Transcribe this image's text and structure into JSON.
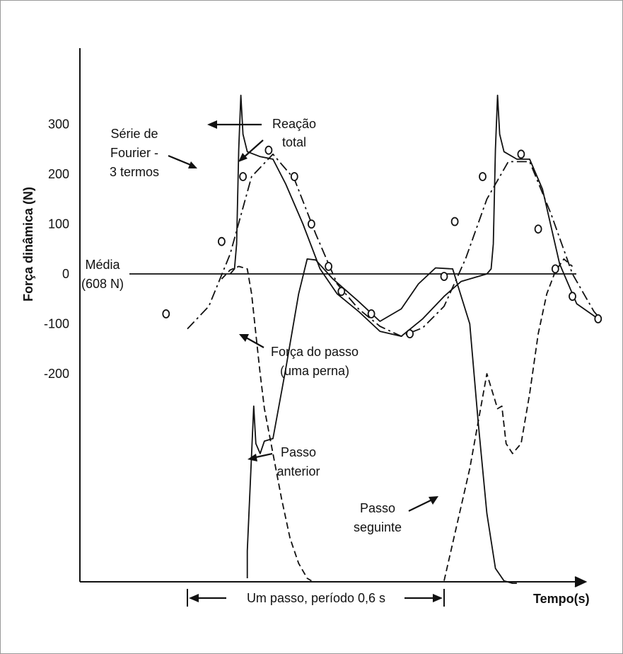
{
  "chart_data": {
    "type": "line",
    "title": "",
    "xlabel": "Tempo(s)",
    "ylabel": "Força dinâmica (N)",
    "y_tick_labels": [
      "300",
      "200",
      "100",
      "0",
      "-100",
      "-200"
    ],
    "y_ticks": [
      300,
      200,
      100,
      0,
      -100,
      -200
    ],
    "ylim": [
      -620,
      440
    ],
    "grid": false,
    "legend": "none",
    "series": [
      {
        "name": "Reação total",
        "style": "solid",
        "x": [
          0.1,
          0.11,
          0.115,
          0.12,
          0.125,
          0.13,
          0.14,
          0.17,
          0.2,
          0.23,
          0.27,
          0.31,
          0.35,
          0.4,
          0.45,
          0.5,
          0.55,
          0.6,
          0.64,
          0.7,
          0.71,
          0.715,
          0.72,
          0.725,
          0.73,
          0.74,
          0.77,
          0.8,
          0.83,
          0.87,
          0.91,
          0.96
        ],
        "y": [
          0,
          10,
          60,
          250,
          358,
          280,
          245,
          235,
          230,
          180,
          100,
          10,
          -40,
          -75,
          -115,
          -125,
          -90,
          -45,
          -15,
          0,
          10,
          60,
          250,
          358,
          280,
          245,
          230,
          230,
          170,
          20,
          -60,
          -90
        ]
      },
      {
        "name": "Série de Fourier - 3 termos",
        "style": "dash-dot",
        "x": [
          0.0,
          0.05,
          0.1,
          0.15,
          0.2,
          0.25,
          0.3,
          0.35,
          0.4,
          0.45,
          0.5,
          0.55,
          0.6,
          0.65,
          0.7,
          0.75,
          0.8,
          0.85,
          0.9,
          0.95,
          0.96
        ],
        "y": [
          -110,
          -65,
          40,
          195,
          240,
          190,
          80,
          -20,
          -70,
          -105,
          -125,
          -108,
          -65,
          30,
          150,
          225,
          225,
          120,
          0,
          -75,
          -85
        ]
      },
      {
        "name": "Força do passo (uma perna)",
        "style": "solid",
        "x": [
          0.14,
          0.14,
          0.155,
          0.16,
          0.17,
          0.18,
          0.2,
          0.23,
          0.26,
          0.28,
          0.3,
          0.34,
          0.4,
          0.45,
          0.5,
          0.54,
          0.58,
          0.62,
          0.66,
          0.68,
          0.7,
          0.72,
          0.74,
          0.76,
          0.77
        ],
        "y": [
          -610,
          -555,
          -265,
          -340,
          -360,
          -335,
          -330,
          -190,
          -40,
          30,
          28,
          -10,
          -55,
          -95,
          -70,
          -20,
          12,
          10,
          -100,
          -300,
          -480,
          -590,
          -615,
          -620,
          -620
        ]
      },
      {
        "name": "Passo anterior",
        "style": "dashed",
        "x": [
          0.08,
          0.1,
          0.12,
          0.14,
          0.15,
          0.16,
          0.17,
          0.18,
          0.2,
          0.22,
          0.24,
          0.26,
          0.28,
          0.29
        ],
        "y": [
          -10,
          8,
          15,
          10,
          -40,
          -120,
          -200,
          -270,
          -360,
          -450,
          -530,
          -580,
          -610,
          -615
        ]
      },
      {
        "name": "Passo seguinte",
        "style": "dashed",
        "x": [
          0.6,
          0.62,
          0.66,
          0.7,
          0.725,
          0.735,
          0.745,
          0.76,
          0.78,
          0.8,
          0.82,
          0.84,
          0.86,
          0.88,
          0.9
        ],
        "y": [
          -615,
          -540,
          -390,
          -200,
          -270,
          -265,
          -340,
          -360,
          -340,
          -240,
          -120,
          -40,
          5,
          30,
          15
        ]
      }
    ],
    "markers": {
      "shape": "open-circle",
      "x": [
        -0.05,
        0.08,
        0.13,
        0.19,
        0.25,
        0.29,
        0.33,
        0.36,
        0.43,
        0.52,
        0.6,
        0.625,
        0.69,
        0.78,
        0.82,
        0.86,
        0.9,
        0.96
      ],
      "y": [
        -80,
        65,
        195,
        248,
        195,
        100,
        15,
        -35,
        -80,
        -120,
        -5,
        105,
        195,
        240,
        90,
        10,
        -45,
        -90
      ]
    },
    "mean_line": {
      "y": 0
    }
  },
  "labels": {
    "fourier": [
      "Série de",
      "Fourier -",
      "3 termos"
    ],
    "reacao": [
      "Reação",
      "total"
    ],
    "media": [
      "Média",
      "(608 N)"
    ],
    "forca_passo": [
      "Força do passo",
      "(uma perna)"
    ],
    "passo_anterior": [
      "Passo",
      "anterior"
    ],
    "passo_seguinte": [
      "Passo",
      "seguinte"
    ],
    "periodo": "Um passo, período 0,6 s"
  },
  "colors": {
    "ink": "#111111",
    "background": "#ffffff",
    "border": "#9a9a9a"
  }
}
